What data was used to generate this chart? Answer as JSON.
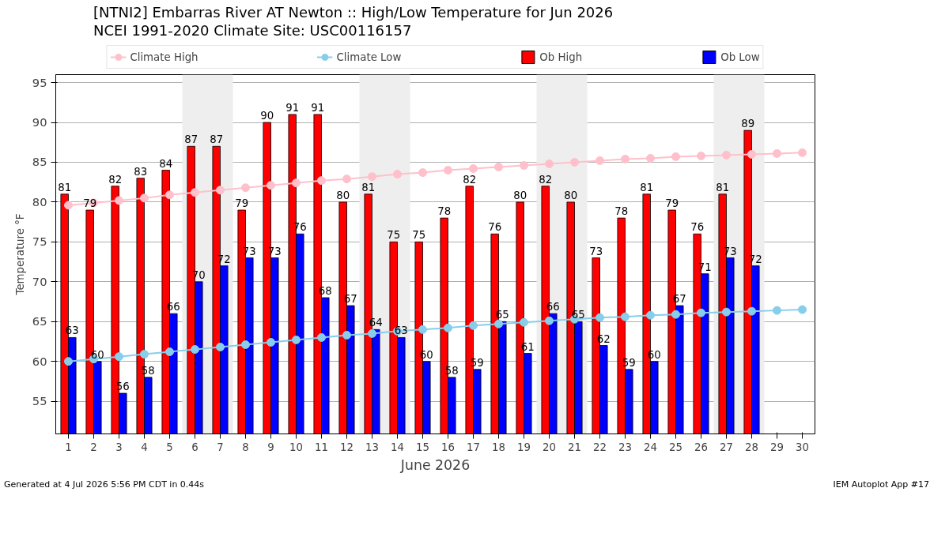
{
  "chart_data": {
    "type": "bar",
    "title": "[NTNI2] Embarras River  AT Newton :: High/Low Temperature for Jun 2026",
    "subtitle": "NCEI 1991-2020 Climate Site: USC00116157",
    "xlabel": "June 2026",
    "ylabel": "Temperature °F",
    "x": [
      1,
      2,
      3,
      4,
      5,
      6,
      7,
      8,
      9,
      10,
      11,
      12,
      13,
      14,
      15,
      16,
      17,
      18,
      19,
      20,
      21,
      22,
      23,
      24,
      25,
      26,
      27,
      28,
      29,
      30
    ],
    "xlim": [
      0.5,
      30.5
    ],
    "xticks": [
      1,
      2,
      3,
      4,
      5,
      6,
      7,
      8,
      9,
      10,
      11,
      12,
      13,
      14,
      15,
      16,
      17,
      18,
      19,
      20,
      21,
      22,
      23,
      24,
      25,
      26,
      27,
      28,
      29,
      30
    ],
    "ylim": [
      50.9,
      96
    ],
    "yticks": [
      55,
      60,
      65,
      70,
      75,
      80,
      85,
      90,
      95
    ],
    "grid": "y",
    "legend": "top",
    "series": [
      {
        "name": "Climate High",
        "type": "line",
        "marker": "circle",
        "color": "#ffc0cb",
        "values": [
          79.6,
          79.9,
          80.2,
          80.5,
          80.9,
          81.2,
          81.5,
          81.8,
          82.1,
          82.4,
          82.7,
          82.9,
          83.2,
          83.5,
          83.7,
          84.0,
          84.2,
          84.4,
          84.6,
          84.8,
          85.0,
          85.2,
          85.4,
          85.5,
          85.7,
          85.8,
          85.9,
          86.0,
          86.1,
          86.2
        ]
      },
      {
        "name": "Climate Low",
        "type": "line",
        "marker": "circle",
        "color": "#87ceeb",
        "values": [
          60.0,
          60.3,
          60.6,
          60.9,
          61.2,
          61.5,
          61.8,
          62.1,
          62.4,
          62.7,
          63.0,
          63.3,
          63.5,
          63.8,
          64.0,
          64.2,
          64.5,
          64.7,
          64.9,
          65.1,
          65.3,
          65.5,
          65.6,
          65.8,
          65.9,
          66.1,
          66.2,
          66.3,
          66.4,
          66.5
        ]
      },
      {
        "name": "Ob High",
        "color": "#ff0000",
        "values": [
          81,
          79,
          82,
          83,
          84,
          87,
          87,
          79,
          90,
          91,
          91,
          80,
          81,
          75,
          75,
          78,
          82,
          76,
          80,
          82,
          80,
          73,
          78,
          81,
          79,
          76,
          81,
          89,
          null,
          null
        ],
        "value_labels": [
          "81",
          "79",
          "82",
          "83",
          "84",
          "87",
          "87",
          "79",
          "90",
          "91",
          "91",
          "80",
          "81",
          "75",
          "75",
          "78",
          "82",
          "76",
          "80",
          "82",
          "80",
          "73",
          "78",
          "81",
          "79",
          "76",
          "81",
          "89",
          null,
          null
        ]
      },
      {
        "name": "Ob Low",
        "color": "#0000ff",
        "values": [
          63,
          60,
          56,
          58,
          66,
          70,
          72,
          73,
          73,
          76,
          68,
          67,
          64,
          63,
          60,
          58,
          59,
          65,
          61,
          66,
          65,
          62,
          59,
          60,
          67,
          71,
          73,
          72,
          null,
          null
        ],
        "value_labels": [
          "63",
          "60",
          "56",
          "58",
          "66",
          "70",
          "72",
          "73",
          "73",
          "76",
          "68",
          "67",
          "64",
          "63",
          "60",
          "58",
          "59",
          "65",
          "61",
          "66",
          "65",
          "62",
          "59",
          "60",
          "67",
          "71",
          "73",
          "72",
          null,
          null
        ]
      }
    ],
    "bands": [
      {
        "axis": "x",
        "from": 5.5,
        "to": 7.5,
        "color": "#eeeeee"
      },
      {
        "axis": "x",
        "from": 12.5,
        "to": 14.5,
        "color": "#eeeeee"
      },
      {
        "axis": "x",
        "from": 19.5,
        "to": 21.5,
        "color": "#eeeeee"
      },
      {
        "axis": "x",
        "from": 26.5,
        "to": 28.5,
        "color": "#eeeeee"
      }
    ],
    "annotations": [
      "Generated at 4 Jul 2026 5:56 PM CDT in 0.44s",
      "IEM Autoplot App #17"
    ]
  }
}
